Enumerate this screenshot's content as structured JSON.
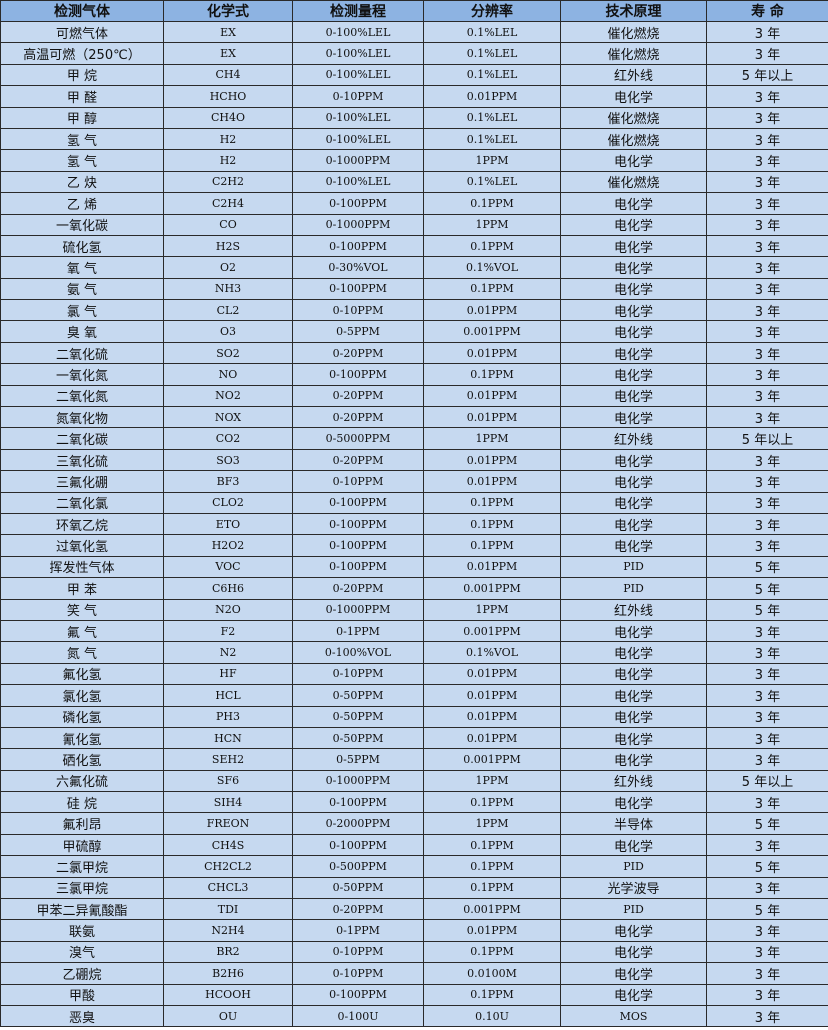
{
  "headers": [
    "检测气体",
    "化学式",
    "检测量程",
    "分辨率",
    "技术原理",
    "寿 命"
  ],
  "rows": [
    [
      "可燃气体",
      "EX",
      "0-100%LEL",
      "0.1%LEL",
      "催化燃烧",
      "3 年"
    ],
    [
      "高温可燃（250℃）",
      "EX",
      "0-100%LEL",
      "0.1%LEL",
      "催化燃烧",
      "3 年"
    ],
    [
      "甲 烷",
      "CH4",
      "0-100%LEL",
      "0.1%LEL",
      "红外线",
      "5 年以上"
    ],
    [
      "甲 醛",
      "HCHO",
      "0-10PPM",
      "0.01PPM",
      "电化学",
      "3 年"
    ],
    [
      "甲 醇",
      "CH4O",
      "0-100%LEL",
      "0.1%LEL",
      "催化燃烧",
      "3 年"
    ],
    [
      "氢 气",
      "H2",
      "0-100%LEL",
      "0.1%LEL",
      "催化燃烧",
      "3 年"
    ],
    [
      "氢 气",
      "H2",
      "0-1000PPM",
      "1PPM",
      "电化学",
      "3 年"
    ],
    [
      "乙 炔",
      "C2H2",
      "0-100%LEL",
      "0.1%LEL",
      "催化燃烧",
      "3 年"
    ],
    [
      "乙 烯",
      "C2H4",
      "0-100PPM",
      "0.1PPM",
      "电化学",
      "3 年"
    ],
    [
      "一氧化碳",
      "CO",
      "0-1000PPM",
      "1PPM",
      "电化学",
      "3 年"
    ],
    [
      "硫化氢",
      "H2S",
      "0-100PPM",
      "0.1PPM",
      "电化学",
      "3 年"
    ],
    [
      "氧 气",
      "O2",
      "0-30%VOL",
      "0.1%VOL",
      "电化学",
      "3 年"
    ],
    [
      "氨 气",
      "NH3",
      "0-100PPM",
      "0.1PPM",
      "电化学",
      "3 年"
    ],
    [
      "氯 气",
      "CL2",
      "0-10PPM",
      "0.01PPM",
      "电化学",
      "3 年"
    ],
    [
      "臭 氧",
      "O3",
      "0-5PPM",
      "0.001PPM",
      "电化学",
      "3 年"
    ],
    [
      "二氧化硫",
      "SO2",
      "0-20PPM",
      "0.01PPM",
      "电化学",
      "3 年"
    ],
    [
      "一氧化氮",
      "NO",
      "0-100PPM",
      "0.1PPM",
      "电化学",
      "3 年"
    ],
    [
      "二氧化氮",
      "NO2",
      "0-20PPM",
      "0.01PPM",
      "电化学",
      "3 年"
    ],
    [
      "氮氧化物",
      "NOX",
      "0-20PPM",
      "0.01PPM",
      "电化学",
      "3 年"
    ],
    [
      "二氧化碳",
      "CO2",
      "0-5000PPM",
      "1PPM",
      "红外线",
      "5 年以上"
    ],
    [
      "三氧化硫",
      "SO3",
      "0-20PPM",
      "0.01PPM",
      "电化学",
      "3 年"
    ],
    [
      "三氟化硼",
      "BF3",
      "0-10PPM",
      "0.01PPM",
      "电化学",
      "3 年"
    ],
    [
      "二氧化氯",
      "CLO2",
      "0-100PPM",
      "0.1PPM",
      "电化学",
      "3 年"
    ],
    [
      "环氧乙烷",
      "ETO",
      "0-100PPM",
      "0.1PPM",
      "电化学",
      "3 年"
    ],
    [
      "过氧化氢",
      "H2O2",
      "0-100PPM",
      "0.1PPM",
      "电化学",
      "3 年"
    ],
    [
      "挥发性气体",
      "VOC",
      "0-100PPM",
      "0.01PPM",
      "PID",
      "5 年"
    ],
    [
      "甲 苯",
      "C6H6",
      "0-20PPM",
      "0.001PPM",
      "PID",
      "5 年"
    ],
    [
      "笑 气",
      "N2O",
      "0-1000PPM",
      "1PPM",
      "红外线",
      "5 年"
    ],
    [
      "氟 气",
      "F2",
      "0-1PPM",
      "0.001PPM",
      "电化学",
      "3 年"
    ],
    [
      "氮 气",
      "N2",
      "0-100%VOL",
      "0.1%VOL",
      "电化学",
      "3 年"
    ],
    [
      "氟化氢",
      "HF",
      "0-10PPM",
      "0.01PPM",
      "电化学",
      "3 年"
    ],
    [
      "氯化氢",
      "HCL",
      "0-50PPM",
      "0.01PPM",
      "电化学",
      "3 年"
    ],
    [
      "磷化氢",
      "PH3",
      "0-50PPM",
      "0.01PPM",
      "电化学",
      "3 年"
    ],
    [
      "氰化氢",
      "HCN",
      "0-50PPM",
      "0.01PPM",
      "电化学",
      "3 年"
    ],
    [
      "硒化氢",
      "SEH2",
      "0-5PPM",
      "0.001PPM",
      "电化学",
      "3 年"
    ],
    [
      "六氟化硫",
      "SF6",
      "0-1000PPM",
      "1PPM",
      "红外线",
      "5 年以上"
    ],
    [
      "硅 烷",
      "SIH4",
      "0-100PPM",
      "0.1PPM",
      "电化学",
      "3 年"
    ],
    [
      "氟利昂",
      "FREON",
      "0-2000PPM",
      "1PPM",
      "半导体",
      "5 年"
    ],
    [
      "甲硫醇",
      "CH4S",
      "0-100PPM",
      "0.1PPM",
      "电化学",
      "3 年"
    ],
    [
      "二氯甲烷",
      "CH2CL2",
      "0-500PPM",
      "0.1PPM",
      "PID",
      "5 年"
    ],
    [
      "三氯甲烷",
      "CHCL3",
      "0-50PPM",
      "0.1PPM",
      "光学波导",
      "3 年"
    ],
    [
      "甲苯二异氰酸酯",
      "TDI",
      "0-20PPM",
      "0.001PPM",
      "PID",
      "5 年"
    ],
    [
      "联氨",
      "N2H4",
      "0-1PPM",
      "0.01PPM",
      "电化学",
      "3 年"
    ],
    [
      "溴气",
      "BR2",
      "0-10PPM",
      "0.1PPM",
      "电化学",
      "3 年"
    ],
    [
      "乙硼烷",
      "B2H6",
      "0-10PPM",
      "0.0100M",
      "电化学",
      "3 年"
    ],
    [
      "甲酸",
      "HCOOH",
      "0-100PPM",
      "0.1PPM",
      "电化学",
      "3 年"
    ],
    [
      "恶臭",
      "OU",
      "0-100U",
      "0.10U",
      "MOS",
      "3 年"
    ]
  ]
}
